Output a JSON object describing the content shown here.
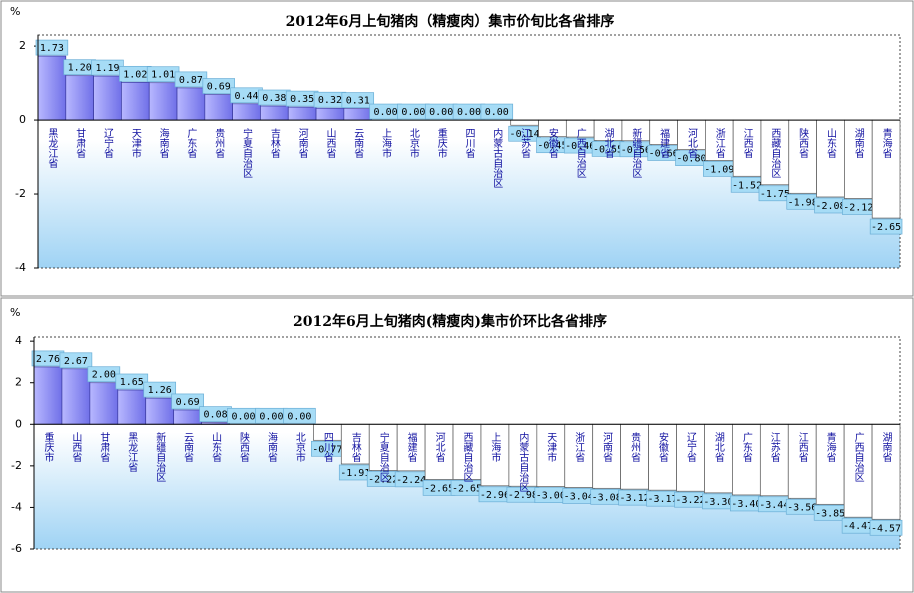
{
  "chart_data": [
    {
      "type": "bar",
      "title": "2012年6月上旬猪肉（精瘦肉）集市价旬比各省排序",
      "y_label": "%",
      "categories": [
        "黑龙江省",
        "甘肃省",
        "辽宁省",
        "天津市",
        "海南省",
        "广东省",
        "贵州省",
        "宁夏自治区",
        "吉林省",
        "河南省",
        "山西省",
        "云南省",
        "上海市",
        "北京市",
        "重庆市",
        "四川省",
        "内蒙古自治区",
        "江苏省",
        "安徽省",
        "广西自治区",
        "湖北省",
        "新疆自治区",
        "福建省",
        "河北省",
        "浙江省",
        "江西省",
        "西藏自治区",
        "陕西省",
        "山东省",
        "湖南省",
        "青海省"
      ],
      "values": [
        1.73,
        1.2,
        1.19,
        1.02,
        1.01,
        0.87,
        0.69,
        0.44,
        0.38,
        0.35,
        0.32,
        0.31,
        0,
        0,
        0,
        0,
        0,
        -0.14,
        -0.45,
        -0.46,
        -0.55,
        -0.56,
        -0.66,
        -0.8,
        -1.09,
        -1.52,
        -1.75,
        -1.98,
        -2.08,
        -2.12,
        -2.65
      ],
      "value_labels": [
        "1.73",
        "1.20",
        "1.19",
        "1.02",
        "1.01",
        "0.87",
        "0.69",
        "0.44",
        "0.38",
        "0.35",
        "0.32",
        "0.31",
        "0.00",
        "0.00",
        "0.00",
        "0.00",
        "0.00",
        "-0.14",
        "-0.45",
        "-0.46",
        "-0.55",
        "-0.56",
        "-0.66",
        "-0.80",
        "-1.09",
        "-1.52",
        "-1.75",
        "-1.98",
        "-2.08",
        "-2.12",
        "-2.65"
      ],
      "color": "#8f8ff8",
      "negative_color": "#ffffff",
      "label_box_color": "#a6dcf6",
      "ylim": [
        -4,
        2.3
      ],
      "yticks": [
        -4,
        -2,
        0,
        2
      ],
      "grid": false
    },
    {
      "type": "bar",
      "title": "2012年6月上旬猪肉(精瘦肉)集市价环比各省排序",
      "y_label": "%",
      "categories": [
        "重庆市",
        "山西省",
        "甘肃省",
        "黑龙江省",
        "新疆自治区",
        "云南省",
        "山东省",
        "陕西省",
        "海南省",
        "北京市",
        "四川省",
        "吉林省",
        "宁夏自治区",
        "福建省",
        "河北省",
        "西藏自治区",
        "上海市",
        "内蒙古自治区",
        "天津市",
        "浙江省",
        "河南省",
        "贵州省",
        "安徽省",
        "辽宁省",
        "湖北省",
        "广东省",
        "江苏省",
        "江西省",
        "青海省",
        "广西自治区",
        "湖南省"
      ],
      "values": [
        2.76,
        2.67,
        2.0,
        1.65,
        1.26,
        0.69,
        0.08,
        0,
        0,
        0,
        -0.77,
        -1.91,
        -2.22,
        -2.24,
        -2.65,
        -2.65,
        -2.96,
        -2.98,
        -3.0,
        -3.04,
        -3.08,
        -3.12,
        -3.17,
        -3.22,
        -3.3,
        -3.4,
        -3.44,
        -3.56,
        -3.85,
        -4.47,
        -4.57
      ],
      "value_labels": [
        "2.76",
        "2.67",
        "2.00",
        "1.65",
        "1.26",
        "0.69",
        "0.08",
        "0.00",
        "0.00",
        "0.00",
        "-0.77",
        "-1.91",
        "-2.22",
        "-2.24",
        "-2.65",
        "-2.65",
        "-2.96",
        "-2.98",
        "-3.00",
        "-3.04",
        "-3.08",
        "-3.12",
        "-3.17",
        "-3.22",
        "-3.30",
        "-3.40",
        "-3.44",
        "-3.56",
        "-3.85",
        "-4.47",
        "-4.57"
      ],
      "color": "#8f8ff8",
      "negative_color": "#ffffff",
      "label_box_color": "#a6dcf6",
      "ylim": [
        -6,
        4.2
      ],
      "yticks": [
        -6,
        -4,
        -2,
        0,
        2,
        4
      ],
      "grid": false
    }
  ]
}
